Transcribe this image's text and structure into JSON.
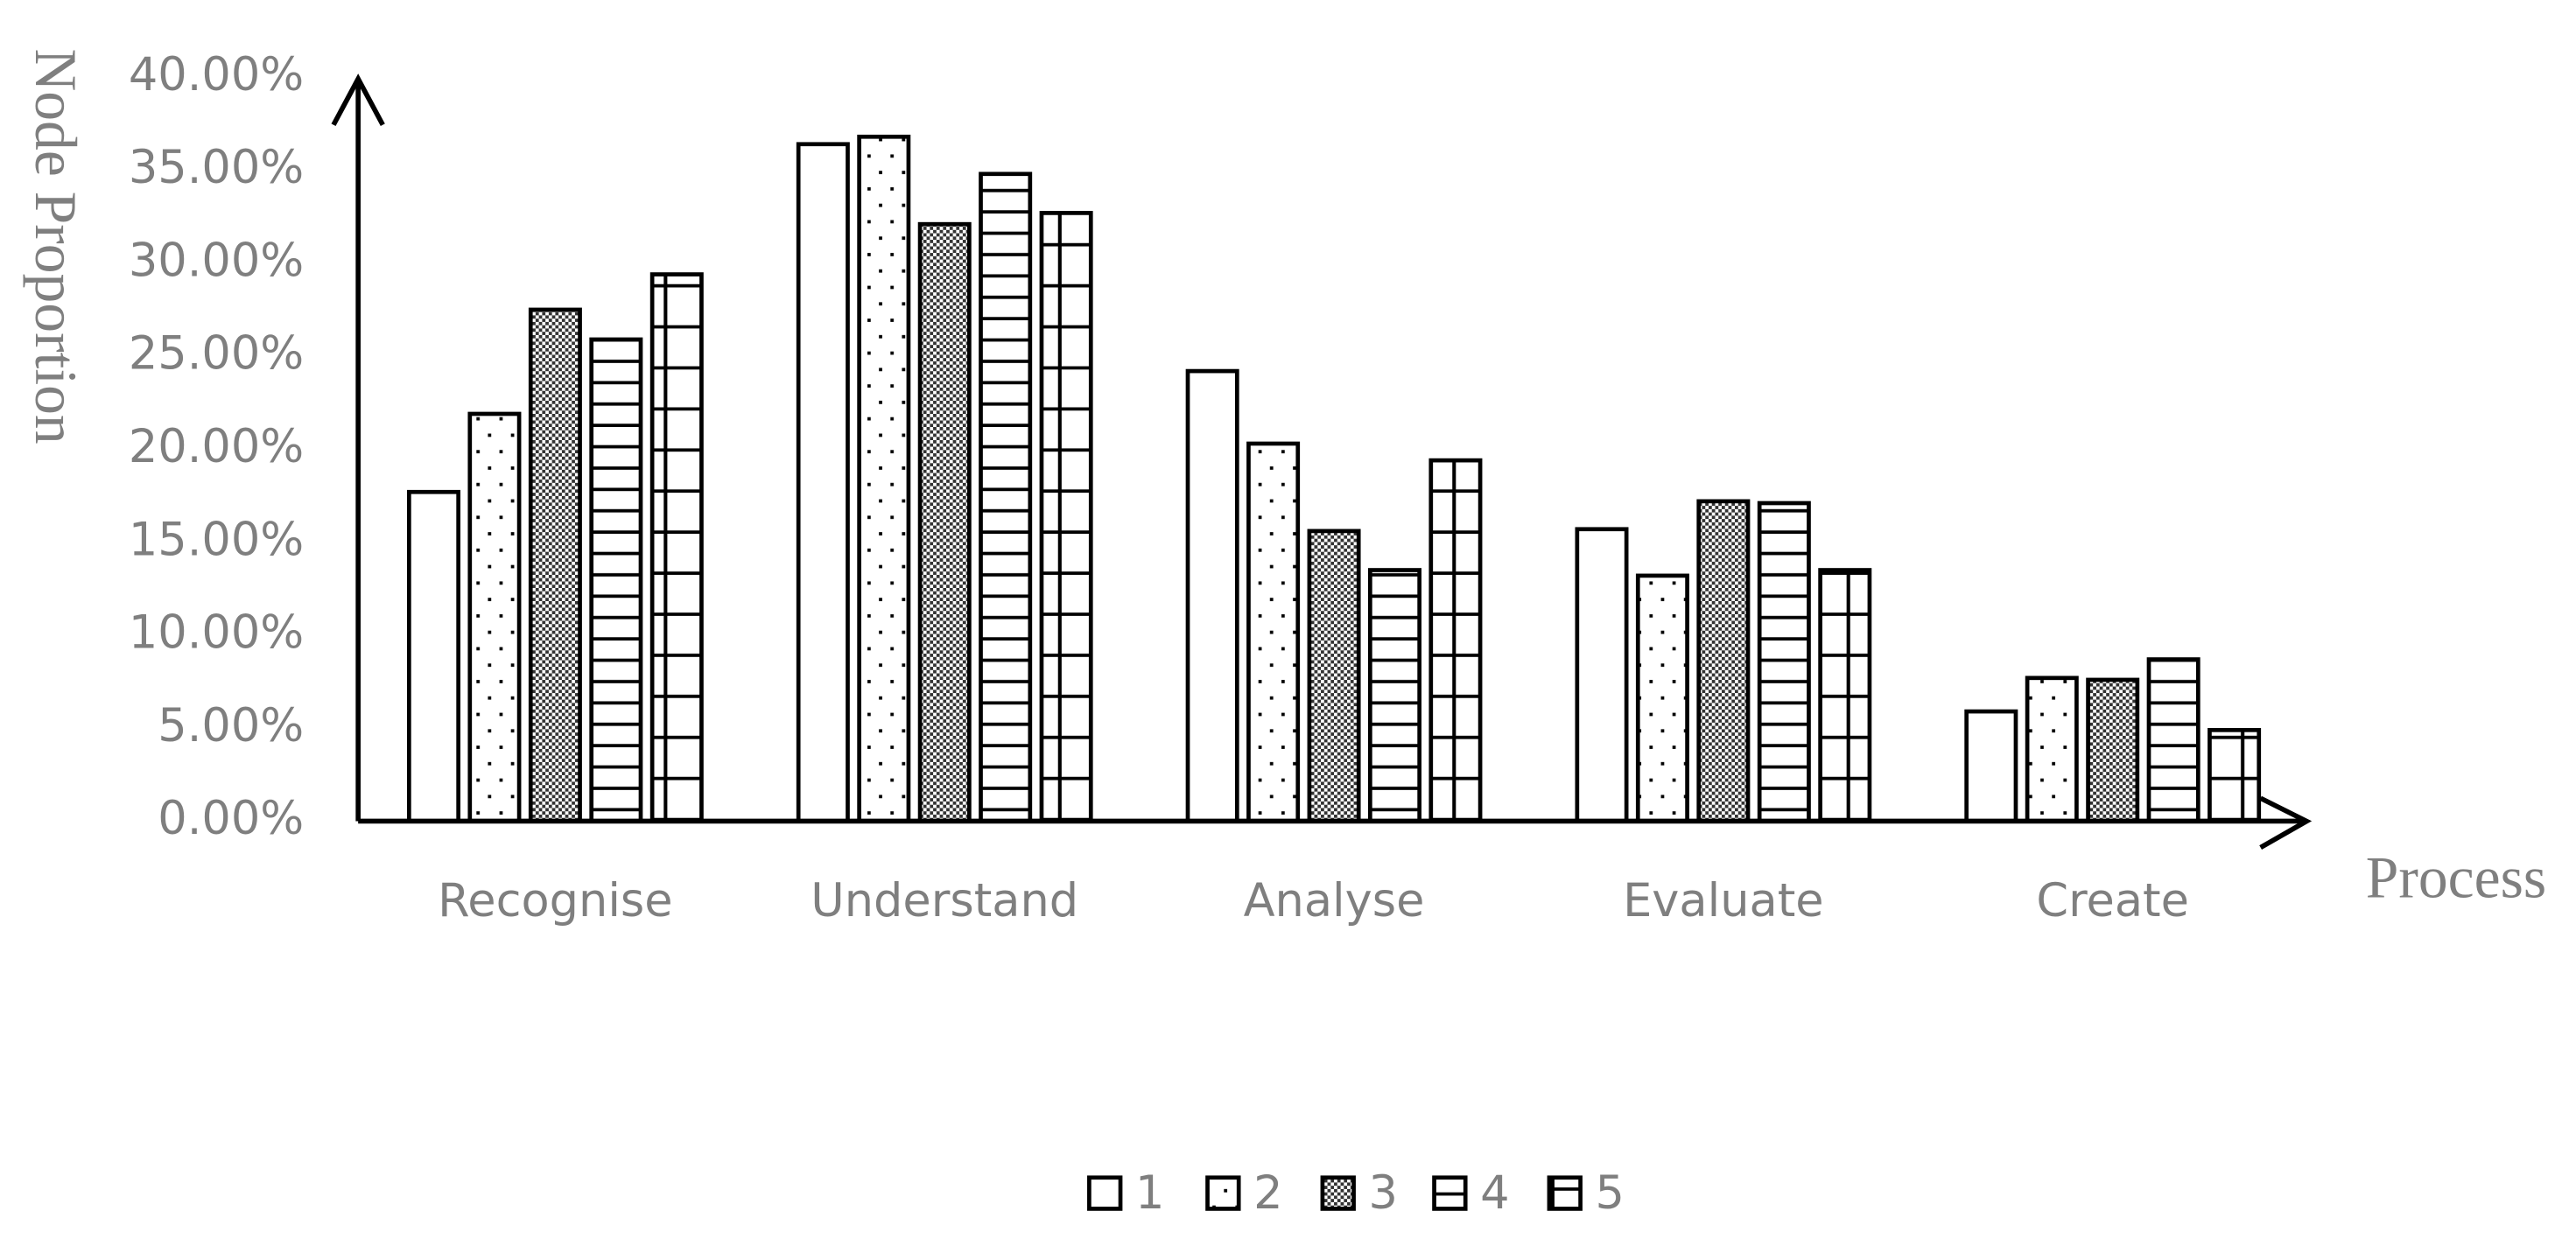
{
  "chart_data": {
    "type": "bar",
    "y_label": "Node Proportion",
    "x_label": "Process",
    "categories": [
      "Recognise",
      "Understand",
      "Analyse",
      "Evaluate",
      "Create"
    ],
    "series": [
      {
        "name": "1",
        "pattern": "plain",
        "values": [
          17.7,
          36.4,
          24.2,
          15.7,
          5.9
        ]
      },
      {
        "name": "2",
        "pattern": "dots",
        "values": [
          21.9,
          36.8,
          20.3,
          13.2,
          7.7
        ]
      },
      {
        "name": "3",
        "pattern": "checker",
        "values": [
          27.5,
          32.1,
          15.6,
          17.2,
          7.6
        ]
      },
      {
        "name": "4",
        "pattern": "hlines",
        "values": [
          25.9,
          34.8,
          13.5,
          17.1,
          8.7
        ]
      },
      {
        "name": "5",
        "pattern": "grid",
        "values": [
          29.4,
          32.7,
          19.4,
          13.5,
          4.9
        ]
      }
    ],
    "ylim": [
      0,
      40
    ],
    "yticks": [
      {
        "value": 0,
        "label": "0.00%"
      },
      {
        "value": 5,
        "label": "5.00%"
      },
      {
        "value": 10,
        "label": "10.00%"
      },
      {
        "value": 15,
        "label": "15.00%"
      },
      {
        "value": 20,
        "label": "20.00%"
      },
      {
        "value": 25,
        "label": "25.00%"
      },
      {
        "value": 30,
        "label": "30.00%"
      },
      {
        "value": 35,
        "label": "35.00%"
      },
      {
        "value": 40,
        "label": "40.00%"
      }
    ],
    "legend": "bottom"
  }
}
